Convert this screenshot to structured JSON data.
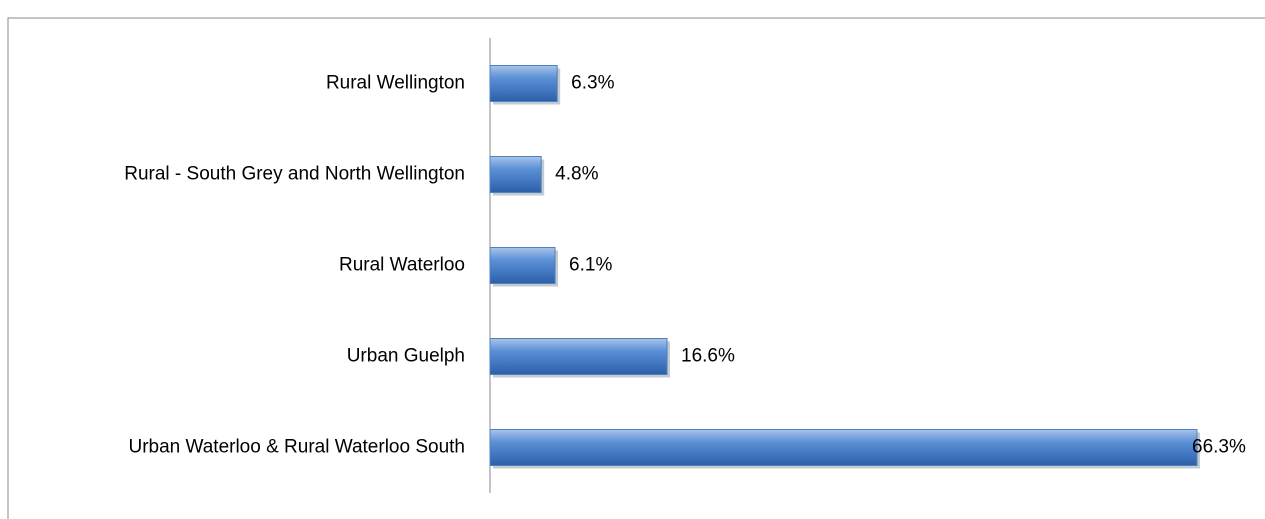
{
  "chart_data": {
    "type": "bar",
    "orientation": "horizontal",
    "categories": [
      "Rural Wellington",
      "Rural - South Grey and North Wellington",
      "Rural Waterloo",
      "Urban Guelph",
      "Urban Waterloo & Rural Waterloo South"
    ],
    "values": [
      6.3,
      4.8,
      6.1,
      16.6,
      66.3
    ],
    "value_labels": [
      "6.3%",
      "4.8%",
      "6.1%",
      "16.6%",
      "66.3%"
    ],
    "color": "#4f81bd"
  }
}
